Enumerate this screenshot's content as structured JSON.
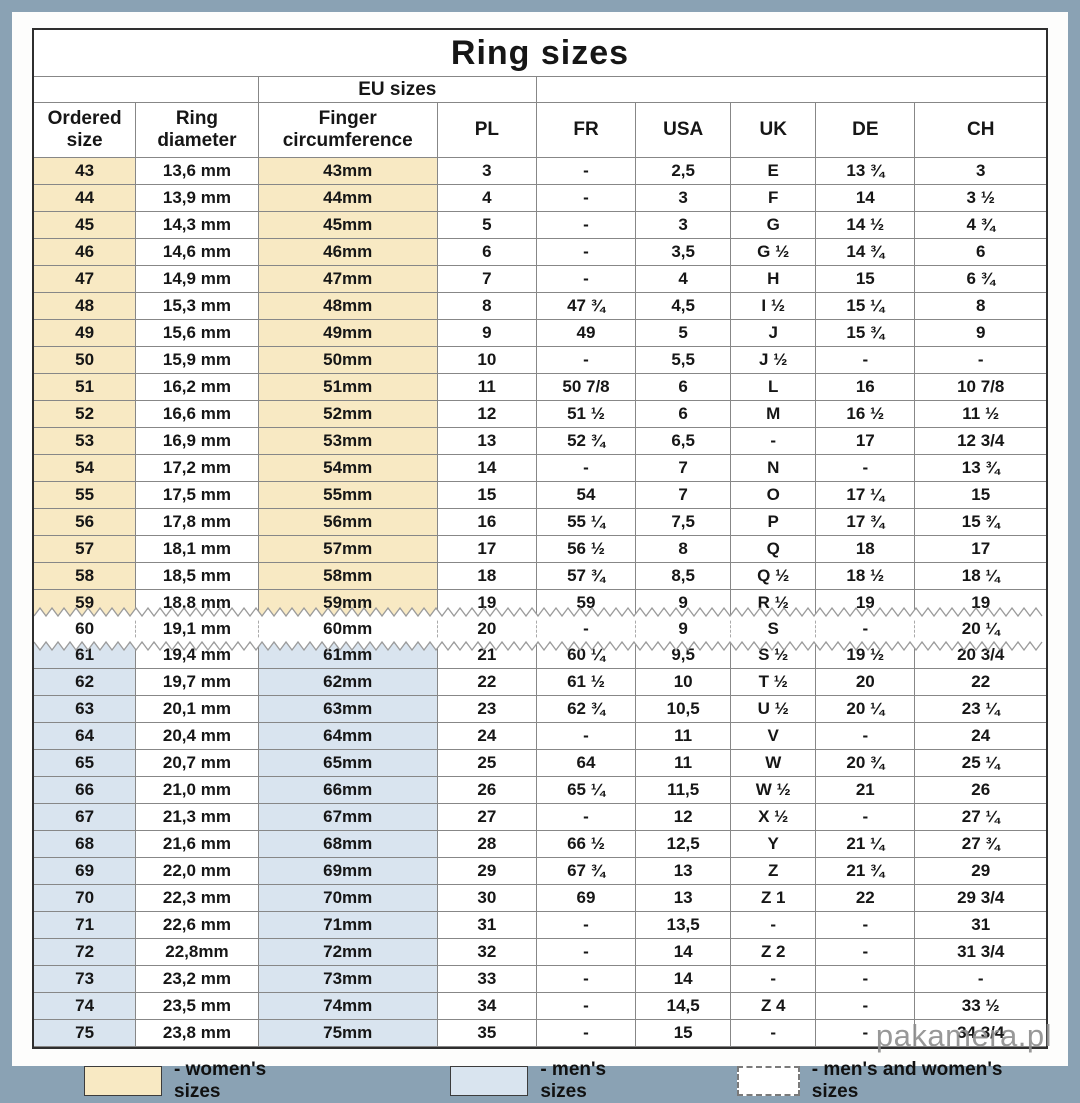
{
  "title": "Ring sizes",
  "table": {
    "group_label": "EU sizes",
    "columns": [
      "Ordered size",
      "Ring diameter",
      "Finger circumference",
      "PL",
      "FR",
      "USA",
      "UK",
      "DE",
      "CH"
    ],
    "rows": [
      {
        "group": "women",
        "cells": [
          "43",
          "13,6 mm",
          "43mm",
          "3",
          "-",
          "2,5",
          "E",
          "13 ¾",
          "3"
        ]
      },
      {
        "group": "women",
        "cells": [
          "44",
          "13,9 mm",
          "44mm",
          "4",
          "-",
          "3",
          "F",
          "14",
          "3 ½"
        ]
      },
      {
        "group": "women",
        "cells": [
          "45",
          "14,3 mm",
          "45mm",
          "5",
          "-",
          "3",
          "G",
          "14 ½",
          "4 ¾"
        ]
      },
      {
        "group": "women",
        "cells": [
          "46",
          "14,6 mm",
          "46mm",
          "6",
          "-",
          "3,5",
          "G ½",
          "14 ¾",
          "6"
        ]
      },
      {
        "group": "women",
        "cells": [
          "47",
          "14,9 mm",
          "47mm",
          "7",
          "-",
          "4",
          "H",
          "15",
          "6 ¾"
        ]
      },
      {
        "group": "women",
        "cells": [
          "48",
          "15,3 mm",
          "48mm",
          "8",
          "47 ¾",
          "4,5",
          "I ½",
          "15 ¼",
          "8"
        ]
      },
      {
        "group": "women",
        "cells": [
          "49",
          "15,6 mm",
          "49mm",
          "9",
          "49",
          "5",
          "J",
          "15 ¾",
          "9"
        ]
      },
      {
        "group": "women",
        "cells": [
          "50",
          "15,9 mm",
          "50mm",
          "10",
          "-",
          "5,5",
          "J ½",
          "-",
          "-"
        ]
      },
      {
        "group": "women",
        "cells": [
          "51",
          "16,2 mm",
          "51mm",
          "11",
          "50 7/8",
          "6",
          "L",
          "16",
          "10 7/8"
        ]
      },
      {
        "group": "women",
        "cells": [
          "52",
          "16,6 mm",
          "52mm",
          "12",
          "51 ½",
          "6",
          "M",
          "16 ½",
          "11 ½"
        ]
      },
      {
        "group": "women",
        "cells": [
          "53",
          "16,9 mm",
          "53mm",
          "13",
          "52 ¾",
          "6,5",
          "-",
          "17",
          "12 3/4"
        ]
      },
      {
        "group": "women",
        "cells": [
          "54",
          "17,2 mm",
          "54mm",
          "14",
          "-",
          "7",
          "N",
          "-",
          "13 ¾"
        ]
      },
      {
        "group": "women",
        "cells": [
          "55",
          "17,5 mm",
          "55mm",
          "15",
          "54",
          "7",
          "O",
          "17 ¼",
          "15"
        ]
      },
      {
        "group": "women",
        "cells": [
          "56",
          "17,8 mm",
          "56mm",
          "16",
          "55 ¼",
          "7,5",
          "P",
          "17 ¾",
          "15 ¾"
        ]
      },
      {
        "group": "women",
        "cells": [
          "57",
          "18,1 mm",
          "57mm",
          "17",
          "56 ½",
          "8",
          "Q",
          "18",
          "17"
        ]
      },
      {
        "group": "women",
        "cells": [
          "58",
          "18,5 mm",
          "58mm",
          "18",
          "57 ¾",
          "8,5",
          "Q ½",
          "18 ½",
          "18 ¼"
        ]
      },
      {
        "group": "women",
        "cells": [
          "59",
          "18,8 mm",
          "59mm",
          "19",
          "59",
          "9",
          "R ½",
          "19",
          "19"
        ]
      },
      {
        "group": "both",
        "cells": [
          "60",
          "19,1 mm",
          "60mm",
          "20",
          "-",
          "9",
          "S",
          "-",
          "20 ¼"
        ]
      },
      {
        "group": "men",
        "cells": [
          "61",
          "19,4 mm",
          "61mm",
          "21",
          "60 ¼",
          "9,5",
          "S ½",
          "19 ½",
          "20 3/4"
        ]
      },
      {
        "group": "men",
        "cells": [
          "62",
          "19,7 mm",
          "62mm",
          "22",
          "61 ½",
          "10",
          "T ½",
          "20",
          "22"
        ]
      },
      {
        "group": "men",
        "cells": [
          "63",
          "20,1 mm",
          "63mm",
          "23",
          "62 ¾",
          "10,5",
          "U ½",
          "20 ¼",
          "23 ¼"
        ]
      },
      {
        "group": "men",
        "cells": [
          "64",
          "20,4 mm",
          "64mm",
          "24",
          "-",
          "11",
          "V",
          "-",
          "24"
        ]
      },
      {
        "group": "men",
        "cells": [
          "65",
          "20,7 mm",
          "65mm",
          "25",
          "64",
          "11",
          "W",
          "20 ¾",
          "25 ¼"
        ]
      },
      {
        "group": "men",
        "cells": [
          "66",
          "21,0 mm",
          "66mm",
          "26",
          "65 ¼",
          "11,5",
          "W ½",
          "21",
          "26"
        ]
      },
      {
        "group": "men",
        "cells": [
          "67",
          "21,3 mm",
          "67mm",
          "27",
          "-",
          "12",
          "X ½",
          "-",
          "27 ¼"
        ]
      },
      {
        "group": "men",
        "cells": [
          "68",
          "21,6 mm",
          "68mm",
          "28",
          "66 ½",
          "12,5",
          "Y",
          "21 ¼",
          "27 ¾"
        ]
      },
      {
        "group": "men",
        "cells": [
          "69",
          "22,0 mm",
          "69mm",
          "29",
          "67 ¾",
          "13",
          "Z",
          "21 ¾",
          "29"
        ]
      },
      {
        "group": "men",
        "cells": [
          "70",
          "22,3 mm",
          "70mm",
          "30",
          "69",
          "13",
          "Z 1",
          "22",
          "29 3/4"
        ]
      },
      {
        "group": "men",
        "cells": [
          "71",
          "22,6 mm",
          "71mm",
          "31",
          "-",
          "13,5",
          "-",
          "-",
          "31"
        ]
      },
      {
        "group": "men",
        "cells": [
          "72",
          "22,8mm",
          "72mm",
          "32",
          "-",
          "14",
          "Z 2",
          "-",
          "31 3/4"
        ]
      },
      {
        "group": "men",
        "cells": [
          "73",
          "23,2 mm",
          "73mm",
          "33",
          "-",
          "14",
          "-",
          "-",
          "-"
        ]
      },
      {
        "group": "men",
        "cells": [
          "74",
          "23,5 mm",
          "74mm",
          "34",
          "-",
          "14,5",
          "Z 4",
          "-",
          "33 ½"
        ]
      },
      {
        "group": "men",
        "cells": [
          "75",
          "23,8 mm",
          "75mm",
          "35",
          "-",
          "15",
          "-",
          "-",
          "34 3/4"
        ]
      }
    ]
  },
  "legend": {
    "items": [
      {
        "key": "women",
        "label": "- women's sizes",
        "color": "#f8e9c3",
        "border": "solid"
      },
      {
        "key": "men",
        "label": "- men's sizes",
        "color": "#d9e4ef",
        "border": "solid"
      },
      {
        "key": "both",
        "label": "- men's and women's sizes",
        "color": "#ffffff",
        "border": "dashed"
      }
    ]
  },
  "watermark": "pakamera.pl",
  "colors": {
    "frame": "#8aa2b4",
    "women_highlight": "#f8e9c3",
    "men_highlight": "#d9e4ef",
    "outer_border": "#2e2e2e",
    "inner_border": "#878787"
  }
}
